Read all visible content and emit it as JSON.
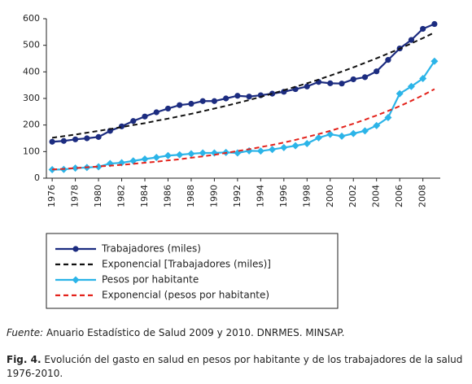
{
  "chart_data": {
    "type": "line",
    "x": [
      1976,
      1977,
      1978,
      1979,
      1980,
      1981,
      1982,
      1983,
      1984,
      1985,
      1986,
      1987,
      1988,
      1989,
      1990,
      1991,
      1992,
      1993,
      1994,
      1995,
      1996,
      1997,
      1998,
      1999,
      2000,
      2001,
      2002,
      2003,
      2004,
      2005,
      2006,
      2007,
      2008,
      2009
    ],
    "xlim": [
      1975.5,
      2009.5
    ],
    "xticks": [
      1976,
      1978,
      1980,
      1982,
      1984,
      1986,
      1988,
      1990,
      1992,
      1994,
      1996,
      1998,
      2000,
      2002,
      2004,
      2006,
      2008
    ],
    "ylim": [
      0,
      600
    ],
    "yticks": [
      0,
      100,
      200,
      300,
      400,
      500,
      600
    ],
    "series": [
      {
        "name": "Trabajadores (miles)",
        "color": "#1c2c80",
        "marker": "circle",
        "dash": "solid",
        "values": [
          137,
          140,
          146,
          150,
          155,
          178,
          195,
          215,
          232,
          248,
          262,
          275,
          280,
          290,
          290,
          300,
          310,
          307,
          312,
          318,
          325,
          335,
          345,
          362,
          357,
          356,
          372,
          380,
          402,
          445,
          488,
          520,
          562,
          580
        ]
      },
      {
        "name": "Exponencial [Trabajadores (miles)]",
        "color": "#111111",
        "marker": "none",
        "dash": "dashed",
        "values": [
          152,
          158,
          164,
          171,
          178,
          185,
          192,
          200,
          207,
          216,
          224,
          233,
          242,
          252,
          262,
          272,
          283,
          294,
          306,
          318,
          331,
          344,
          357,
          371,
          386,
          401,
          417,
          434,
          451,
          469,
          487,
          507,
          527,
          548
        ]
      },
      {
        "name": "Pesos por habitante",
        "color": "#2bb4e8",
        "marker": "diamond",
        "dash": "solid",
        "values": [
          32,
          33,
          38,
          40,
          43,
          55,
          58,
          65,
          72,
          78,
          85,
          88,
          92,
          95,
          95,
          97,
          95,
          103,
          102,
          108,
          115,
          122,
          130,
          152,
          165,
          158,
          168,
          178,
          198,
          228,
          318,
          345,
          375,
          440
        ]
      },
      {
        "name": "Exponencial (pesos por habitante)",
        "color": "#e3231c",
        "marker": "none",
        "dash": "dashed",
        "values": [
          33,
          35,
          38,
          41,
          44,
          47,
          50,
          54,
          58,
          62,
          67,
          71,
          77,
          82,
          88,
          95,
          102,
          109,
          117,
          125,
          134,
          144,
          155,
          166,
          178,
          191,
          205,
          220,
          236,
          253,
          271,
          291,
          312,
          335
        ]
      }
    ]
  },
  "source": {
    "label": "Fuente:",
    "text": "Anuario Estadístico de Salud 2009 y 2010. DNRMES. MINSAP."
  },
  "caption": {
    "label": "Fig. 4.",
    "text": "Evolución del gasto en salud en pesos por habitante y de los trabajadores de la salud 1976-2010."
  }
}
